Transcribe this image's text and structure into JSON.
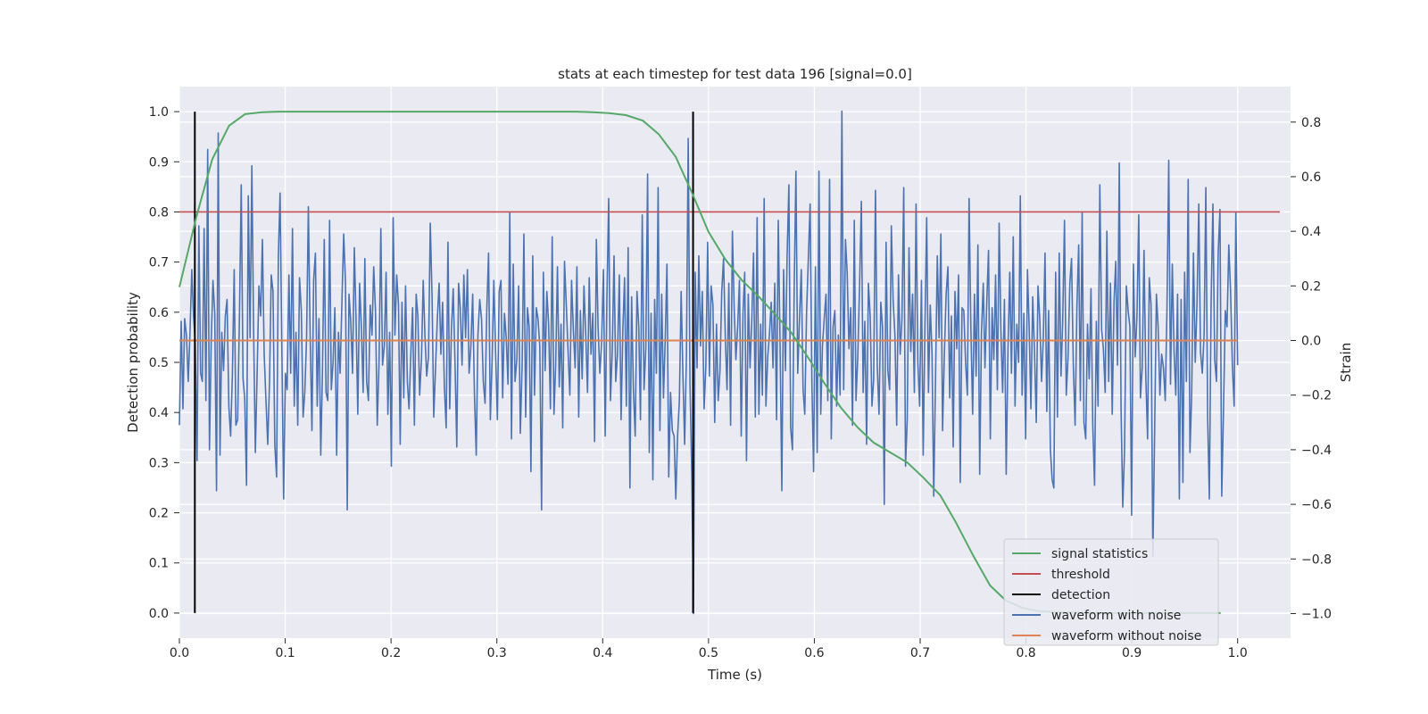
{
  "chart_data": {
    "type": "line",
    "title": "stats at each timestep for test data 196 [signal=0.0]",
    "xlabel": "Time (s)",
    "ylabel": "Detection probability",
    "y2label": "Strain",
    "xlim": [
      0.0,
      1.05
    ],
    "ylim": [
      -0.05,
      1.05
    ],
    "y2lim": [
      -1.09,
      0.93
    ],
    "xticks": [
      "0.0",
      "0.1",
      "0.2",
      "0.3",
      "0.4",
      "0.5",
      "0.6",
      "0.7",
      "0.8",
      "0.9",
      "1.0"
    ],
    "yticks": [
      "0.0",
      "0.1",
      "0.2",
      "0.3",
      "0.4",
      "0.5",
      "0.6",
      "0.7",
      "0.8",
      "0.9",
      "1.0"
    ],
    "y2ticks": [
      "−1.0",
      "−0.8",
      "−0.6",
      "−0.4",
      "−0.2",
      "0.0",
      "0.2",
      "0.4",
      "0.6",
      "0.8"
    ],
    "grid": true,
    "legend_position": "lower-right",
    "series": [
      {
        "name": "signal statistics",
        "color": "#55a868",
        "axis": "left",
        "x": [
          0.0,
          0.016,
          0.031,
          0.047,
          0.062,
          0.078,
          0.094,
          0.109,
          0.125,
          0.141,
          0.156,
          0.172,
          0.188,
          0.203,
          0.219,
          0.234,
          0.25,
          0.266,
          0.281,
          0.297,
          0.312,
          0.328,
          0.344,
          0.359,
          0.375,
          0.391,
          0.406,
          0.422,
          0.438,
          0.453,
          0.469,
          0.484,
          0.5,
          0.516,
          0.531,
          0.547,
          0.562,
          0.578,
          0.594,
          0.609,
          0.625,
          0.641,
          0.656,
          0.672,
          0.688,
          0.703,
          0.719,
          0.734,
          0.75,
          0.766,
          0.781,
          0.797,
          0.812,
          0.828,
          0.844,
          0.859,
          0.875,
          0.891,
          0.906,
          0.922,
          0.938,
          0.953,
          0.969,
          0.984
        ],
        "y": [
          0.65,
          0.79,
          0.905,
          0.972,
          0.995,
          0.999,
          1.0,
          1.0,
          1.0,
          1.0,
          1.0,
          1.0,
          1.0,
          1.0,
          1.0,
          1.0,
          1.0,
          1.0,
          1.0,
          1.0,
          1.0,
          1.0,
          1.0,
          1.0,
          1.0,
          0.999,
          0.997,
          0.993,
          0.982,
          0.955,
          0.91,
          0.84,
          0.76,
          0.705,
          0.665,
          0.632,
          0.598,
          0.56,
          0.51,
          0.46,
          0.41,
          0.37,
          0.34,
          0.32,
          0.3,
          0.27,
          0.235,
          0.18,
          0.115,
          0.055,
          0.025,
          0.01,
          0.004,
          0.002,
          0.001,
          0.0,
          0.0,
          0.0,
          0.0,
          0.0,
          0.0,
          0.0,
          0.0,
          0.0
        ]
      },
      {
        "name": "threshold",
        "color": "#c44e52",
        "axis": "left",
        "x": [
          0.0,
          1.04
        ],
        "y": [
          0.8,
          0.8
        ]
      },
      {
        "name": "detection",
        "color": "#000000",
        "axis": "left",
        "vlines": [
          0.0146,
          0.4854
        ],
        "y": [
          0.0,
          1.0
        ]
      },
      {
        "name": "waveform with noise",
        "color": "#4c72b0",
        "axis": "right",
        "x_range": [
          0.0,
          1.0
        ],
        "y": [
          -0.31,
          0.07,
          -0.25,
          0.08,
          0.02,
          -0.15,
          0.03,
          0.26,
          0.09,
          -0.01,
          -0.44,
          0.42,
          -0.12,
          -0.15,
          0.41,
          -0.22,
          0.7,
          -0.4,
          -0.01,
          0.22,
          0.1,
          -0.55,
          0.76,
          -0.42,
          0.03,
          -0.11,
          0.09,
          0.15,
          -0.24,
          -0.35,
          -0.12,
          0.26,
          -0.31,
          -0.29,
          0.09,
          0.57,
          -0.14,
          -0.21,
          -0.53,
          0.53,
          0.01,
          0.64,
          0.05,
          -0.41,
          -0.12,
          0.2,
          0.09,
          0.37,
          -0.05,
          -0.22,
          -0.38,
          -0.15,
          0.24,
          0.18,
          -0.38,
          -0.5,
          0.31,
          0.54,
          -0.03,
          -0.58,
          -0.12,
          -0.18,
          0.24,
          -0.12,
          0.41,
          -0.24,
          0.03,
          -0.31,
          0.23,
          0.11,
          -0.28,
          -0.19,
          0.01,
          0.49,
          0.02,
          -0.33,
          0.22,
          0.32,
          -0.24,
          0.08,
          -0.42,
          -0.11,
          0.37,
          -0.19,
          -0.22,
          0.44,
          -0.18,
          -0.08,
          0.12,
          -0.42,
          0.03,
          -0.12,
          0.14,
          0.39,
          0.21,
          -0.62,
          0.17,
          0.07,
          -0.12,
          0.34,
          0.08,
          -0.27,
          0.21,
          0.05,
          -0.19,
          0.3,
          -0.15,
          -0.22,
          0.13,
          0.02,
          0.27,
          0.11,
          -0.31,
          -0.08,
          0.41,
          -0.09,
          -0.02,
          0.25,
          -0.27,
          0.03,
          -0.46,
          0.45,
          0.02,
          0.24,
          0.13,
          -0.38,
          0.14,
          -0.21,
          0.2,
          -0.15,
          -0.25,
          -0.05,
          0.12,
          -0.31,
          0.17,
          0.09,
          -0.2,
          -0.07,
          0.22,
          0.02,
          -0.13,
          -0.06,
          0.43,
          0.16,
          -0.28,
          -0.1,
          0.08,
          0.21,
          -0.05,
          0.14,
          -0.17,
          -0.32,
          0.36,
          -0.25,
          0.04,
          0.19,
          -0.08,
          -0.39,
          0.21,
          0.12,
          -0.09,
          0.24,
          0.01,
          0.26,
          -0.12,
          -0.02,
          0.17,
          -0.2,
          -0.42,
          0.02,
          0.15,
          0.08,
          -0.15,
          -0.23,
          0.11,
          0.32,
          -0.29,
          -0.07,
          0.22,
          -0.04,
          -0.29,
          0.18,
          0.22,
          -0.21,
          0.1,
          0.01,
          -0.16,
          0.47,
          -0.36,
          0.28,
          -0.15,
          -0.07,
          0.2,
          -0.34,
          -0.09,
          0.39,
          -0.28,
          0.12,
          0.05,
          -0.48,
          0.31,
          -0.2,
          0.12,
          0.08,
          -0.02,
          -0.62,
          0.25,
          -0.11,
          0.18,
          0.06,
          -0.25,
          0.38,
          -0.27,
          -0.09,
          0.27,
          -0.17,
          0.06,
          -0.32,
          0.29,
          0.13,
          -0.04,
          -0.2,
          0.22,
          0.04,
          -0.1,
          0.27,
          -0.28,
          0.11,
          -0.14,
          0.2,
          0.02,
          -0.19,
          0.23,
          -0.05,
          0.1,
          -0.37,
          0.37,
          0.05,
          -0.12,
          -0.01,
          0.26,
          -0.35,
          0.15,
          0.52,
          -0.22,
          -0.04,
          0.31,
          -0.15,
          -0.05,
          0.24,
          -0.29,
          0.04,
          0.23,
          -0.24,
          0.34,
          -0.54,
          0.16,
          -0.18,
          -0.35,
          0.18,
          0.05,
          -0.29,
          0.46,
          -0.18,
          -0.03,
          0.61,
          -0.41,
          0.1,
          -0.51,
          0.15,
          -0.12,
          0.56,
          -0.33,
          0.17,
          -0.21,
          0.01,
          0.28,
          -0.5,
          -0.19,
          -0.33,
          -0.35,
          -0.58,
          -0.35,
          -0.22,
          0.18,
          -0.13,
          -0.38,
          -0.06,
          0.74,
          -0.16,
          -0.49,
          -1.0,
          0.25,
          -0.1,
          0.31,
          -0.02,
          0.18,
          -0.25,
          -0.09,
          0.36,
          -0.13,
          0.2,
          0.13,
          -0.3,
          0.06,
          -0.22,
          -0.11,
          0.18,
          0.3,
          0.01,
          -0.18,
          0.21,
          -0.31,
          0.4,
          0.12,
          -0.07,
          0.05,
          0.22,
          -0.35,
          0.1,
          0.25,
          -0.44,
          0.17,
          -0.1,
          0.08,
          0.32,
          -0.28,
          0.45,
          -0.27,
          0.06,
          -0.2,
          0.52,
          -0.24,
          -0.06,
          0.02,
          0.14,
          -0.1,
          0.21,
          -0.29,
          0.44,
          -0.01,
          -0.55,
          0.26,
          -0.11,
          0.31,
          0.57,
          -0.32,
          -0.4,
          0.2,
          0.62,
          -0.12,
          0.08,
          0.26,
          -0.18,
          -0.27,
          0.1,
          0.3,
          0.5,
          -0.16,
          -0.48,
          0.27,
          -0.41,
          0.62,
          -0.27,
          -0.02,
          0.08,
          0.17,
          -0.22,
          0.59,
          -0.36,
          0.05,
          0.11,
          -0.24,
          0.02,
          -0.2,
          0.84,
          -0.18,
          0.37,
          0.25,
          -0.03,
          0.12,
          -0.31,
          0.44,
          -0.22,
          -0.06,
          0.2,
          0.51,
          -0.19,
          0.07,
          -0.38,
          0.21,
          0.09,
          -0.24,
          -0.14,
          0.55,
          -0.09,
          -0.27,
          0.14,
          0.05,
          -0.6,
          0.36,
          -0.11,
          -0.18,
          0.42,
          0.15,
          0.02,
          -0.31,
          0.24,
          -0.05,
          0.08,
          0.56,
          -0.46,
          -0.29,
          0.34,
          -0.04,
          0.17,
          -0.19,
          0.5,
          -0.08,
          -0.24,
          0.22,
          -0.42,
          0.04,
          0.45,
          -0.19,
          0.13,
          -0.05,
          -0.57,
          -0.14,
          0.31,
          0.01,
          0.39,
          -0.33,
          -0.05,
          0.17,
          0.27,
          -0.21,
          0.09,
          -0.39,
          0.18,
          -0.03,
          0.24,
          -0.52,
          0.12,
          0.11,
          -0.08,
          -0.2,
          0.52,
          0.05,
          -0.27,
          0.17,
          -0.13,
          0.35,
          -0.49,
          0.03,
          0.21,
          -0.1,
          0.14,
          0.33,
          -0.36,
          0.12,
          -0.07,
          0.24,
          -0.18,
          0.43,
          0.03,
          -0.19,
          0.15,
          -0.49,
          -0.03,
          0.25,
          -0.12,
          0.38,
          -0.24,
          0.06,
          -0.08,
          0.53,
          -0.2,
          0.1,
          -0.36,
          0.26,
          0.05,
          -0.25,
          0.16,
          -0.04,
          -0.3,
          0.2,
          0.08,
          -0.15,
          0.01,
          0.32,
          -0.26,
          0.11,
          -0.4,
          -0.51,
          -0.54,
          0.25,
          -0.28,
          0.32,
          -0.13,
          0.07,
          0.44,
          -0.2,
          -0.06,
          0.21,
          0.3,
          -0.09,
          -0.31,
          0.12,
          0.35,
          -0.22,
          0.47,
          -0.3,
          -0.36,
          0.06,
          -0.14,
          0.19,
          -0.31,
          -0.53,
          0.07,
          -0.24,
          0.57,
          0.04,
          -0.03,
          -0.19,
          0.4,
          -0.15,
          0.21,
          -0.27,
          0.14,
          0.29,
          -0.09,
          0.65,
          -0.25,
          -0.61,
          -0.4,
          0.2,
          0.11,
          0.05,
          -0.64,
          0.28,
          -0.06,
          0.09,
          0.46,
          -0.21,
          -0.1,
          0.33,
          -0.13,
          -0.36,
          0.23,
          0.13,
          -0.79,
          -0.34,
          0.17,
          0.05,
          -0.2,
          -0.05,
          -0.1,
          -0.22,
          0.11,
          0.66,
          -0.16,
          0.28,
          -0.04,
          -0.2,
          0.17,
          -0.58,
          0.15,
          -0.52,
          0.25,
          -0.15,
          0.59,
          -0.41,
          -0.2,
          0.32,
          -0.08,
          0.14,
          0.5,
          -0.04,
          -0.12,
          0.02,
          0.56,
          -0.28,
          -0.58,
          0.14,
          0.5,
          -0.07,
          -0.15,
          0.32,
          0.48,
          -0.57,
          -0.25,
          0.11,
          0.05,
          0.35,
          0.18,
          -0.09,
          -0.24,
          0.47,
          -0.09
        ]
      },
      {
        "name": "waveform without noise",
        "color": "#dd8452",
        "axis": "right",
        "x": [
          0.0,
          1.0
        ],
        "y": [
          0.0,
          0.0
        ]
      }
    ]
  }
}
